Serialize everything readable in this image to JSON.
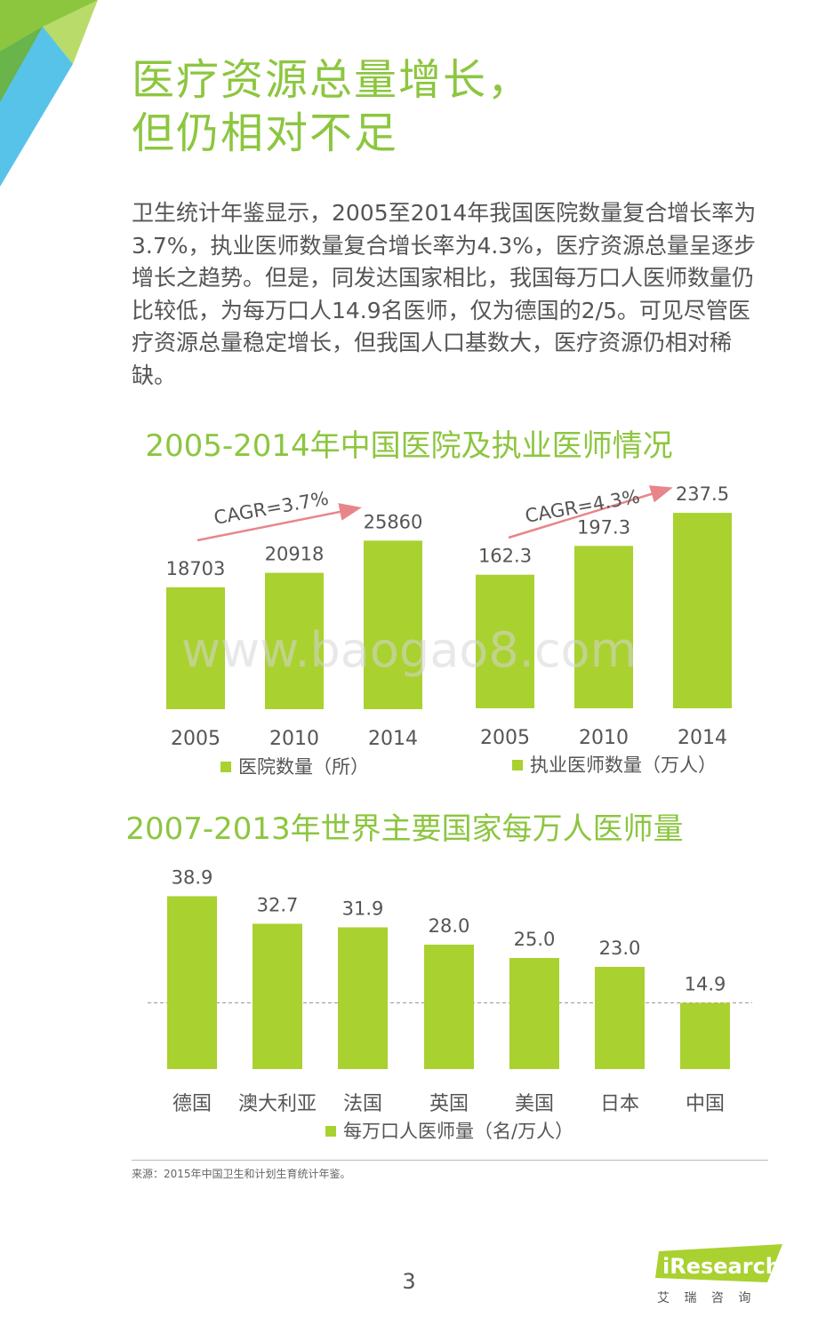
{
  "header": {
    "title_line1": "医疗资源总量增长，",
    "title_line2": "但仍相对不足"
  },
  "intro": "卫生统计年鉴显示，2005至2014年我国医院数量复合增长率为3.7%，执业医师数量复合增长率为4.3%，医疗资源总量呈逐步增长之趋势。但是，同发达国家相比，我国每万口人医师数量仍比较低，为每万口人14.9名医师，仅为德国的2/5。可见尽管医疗资源总量稳定增长，但我国人口基数大，医疗资源仍相对稀缺。",
  "watermark": "www.baogao8.com",
  "section1_title": "2005-2014年中国医院及执业医师情况",
  "section2_title": "2007-2013年世界主要国家每万人医师量",
  "colors": {
    "accent": "#8cc63f",
    "bar": "#a9d130",
    "arrow": "#e8858a"
  },
  "chart_data": [
    {
      "type": "bar",
      "title": "",
      "categories": [
        "2005",
        "2010",
        "2014"
      ],
      "series": [
        {
          "name": "医院数量（所）",
          "values": [
            18703,
            20918,
            25860
          ]
        }
      ],
      "value_labels": [
        "18703",
        "20918",
        "25860"
      ],
      "annotation": "CAGR=3.7%",
      "ylim": [
        0,
        30000
      ],
      "grid": false,
      "legend": "bottom"
    },
    {
      "type": "bar",
      "title": "",
      "categories": [
        "2005",
        "2010",
        "2014"
      ],
      "series": [
        {
          "name": "执业医师数量（万人）",
          "values": [
            162.3,
            197.3,
            237.5
          ]
        }
      ],
      "value_labels": [
        "162.3",
        "197.3",
        "237.5"
      ],
      "annotation": "CAGR=4.3%",
      "ylim": [
        0,
        270
      ],
      "grid": false,
      "legend": "bottom"
    },
    {
      "type": "bar",
      "title": "",
      "categories": [
        "德国",
        "澳大利亚",
        "法国",
        "英国",
        "美国",
        "日本",
        "中国"
      ],
      "series": [
        {
          "name": "每万口人医师量（名/万人）",
          "values": [
            38.9,
            32.7,
            31.9,
            28.0,
            25.0,
            23.0,
            14.9
          ]
        }
      ],
      "value_labels": [
        "38.9",
        "32.7",
        "31.9",
        "28.0",
        "25.0",
        "23.0",
        "14.9"
      ],
      "ylim": [
        0,
        40
      ],
      "reference_line": 14.9,
      "grid": false,
      "legend": "bottom"
    }
  ],
  "footer": {
    "source": "来源：2015年中国卫生和计划生育统计年鉴。",
    "page_number": "3",
    "logo_text": "iResearch",
    "logo_sub": "艾 瑞 咨 询"
  }
}
